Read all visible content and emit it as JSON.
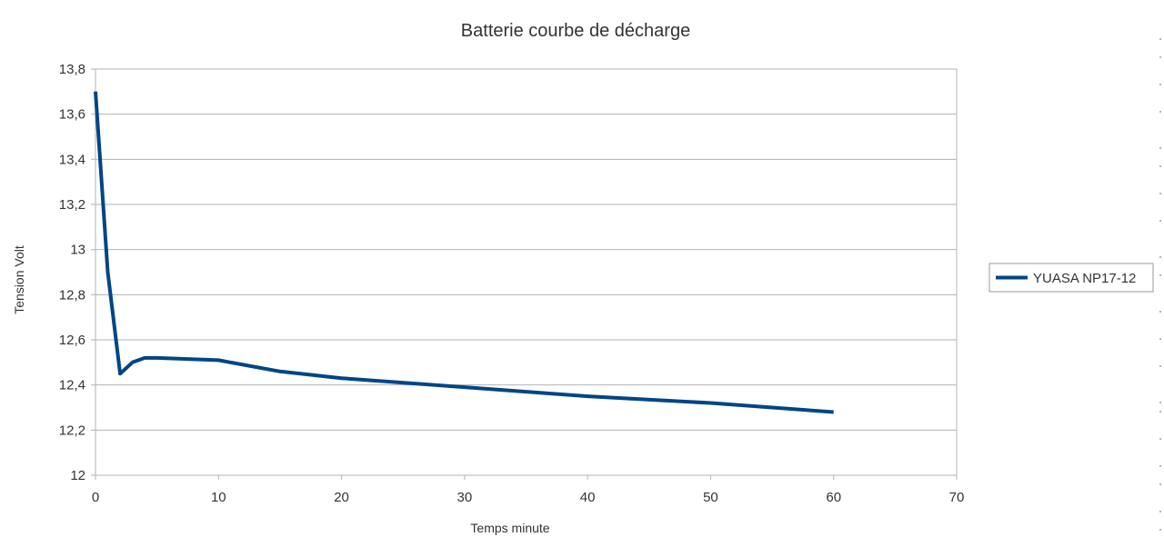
{
  "chart_data": {
    "type": "line",
    "title": "Batterie courbe de décharge",
    "xlabel": "Temps minute",
    "ylabel": "Tension Volt",
    "xlim": [
      0,
      70
    ],
    "ylim": [
      12,
      13.8
    ],
    "x_ticks": [
      0,
      10,
      20,
      30,
      40,
      50,
      60,
      70
    ],
    "x_tick_labels": [
      "0",
      "10",
      "20",
      "30",
      "40",
      "50",
      "60",
      "70"
    ],
    "y_ticks": [
      12,
      12.2,
      12.4,
      12.6,
      12.8,
      13,
      13.2,
      13.4,
      13.6,
      13.8
    ],
    "y_tick_labels": [
      "12",
      "12,2",
      "12,4",
      "12,6",
      "12,8",
      "13",
      "13,2",
      "13,4",
      "13,6",
      "13,8"
    ],
    "grid": "horizontal",
    "legend_position": "right",
    "series": [
      {
        "name": "YUASA NP17-12",
        "color": "#004586",
        "x": [
          0,
          1,
          2,
          3,
          4,
          5,
          10,
          15,
          20,
          30,
          40,
          50,
          60
        ],
        "y": [
          13.7,
          12.9,
          12.45,
          12.5,
          12.52,
          12.52,
          12.51,
          12.46,
          12.43,
          12.39,
          12.35,
          12.32,
          12.28
        ]
      }
    ]
  }
}
